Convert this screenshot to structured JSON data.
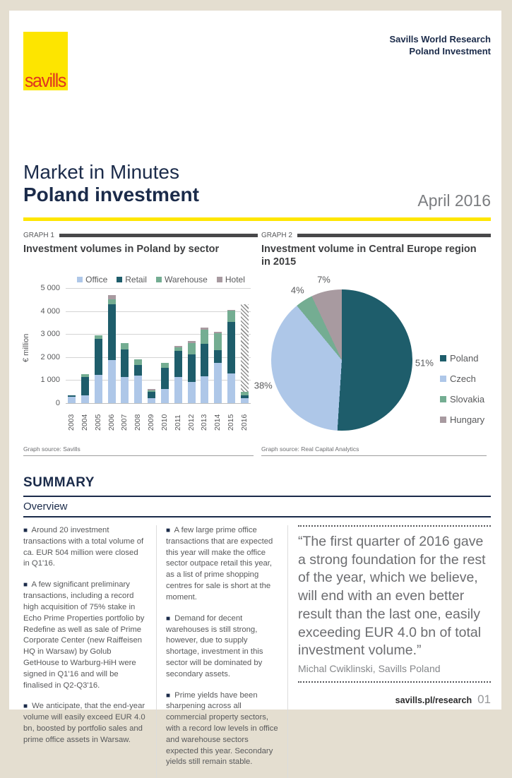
{
  "header": {
    "brand": "savills",
    "line1": "Savills World Research",
    "line2": "Poland Investment"
  },
  "title": {
    "line1": "Market in Minutes",
    "line2": "Poland investment",
    "date": "April 2016"
  },
  "graph1": {
    "tag": "GRAPH 1"
  },
  "graph2": {
    "tag": "GRAPH 2"
  },
  "chart_data": [
    {
      "type": "bar",
      "stacked": true,
      "title": "Investment volumes in Poland by sector",
      "xlabel": "",
      "ylabel": "€ million",
      "ylim": [
        0,
        5000
      ],
      "ytick_labels": [
        "5 000",
        "4 000",
        "3 000",
        "2 000",
        "1 000",
        "0"
      ],
      "categories": [
        "2003",
        "2004",
        "2005",
        "2006",
        "2007",
        "2008",
        "2009",
        "2010",
        "2011",
        "2012",
        "2013",
        "2014",
        "2015",
        "2016"
      ],
      "series": [
        {
          "name": "Office",
          "color": "#aec7e8",
          "values": [
            270,
            330,
            1220,
            1880,
            1150,
            1190,
            200,
            600,
            1150,
            930,
            1170,
            1740,
            1300,
            230
          ]
        },
        {
          "name": "Retail",
          "color": "#1e5d6b",
          "values": [
            80,
            820,
            1560,
            2420,
            1180,
            480,
            300,
            930,
            1130,
            1180,
            1410,
            570,
            2230,
            120
          ]
        },
        {
          "name": "Warehouse",
          "color": "#74ad92",
          "values": [
            0,
            100,
            170,
            220,
            270,
            240,
            60,
            210,
            140,
            490,
            620,
            720,
            490,
            150
          ]
        },
        {
          "name": "Hotel",
          "color": "#a89aa0",
          "values": [
            0,
            0,
            0,
            180,
            0,
            0,
            40,
            0,
            80,
            100,
            80,
            60,
            30,
            0
          ]
        }
      ],
      "forecast": {
        "category": "2016",
        "from": 500,
        "to": 4300,
        "style": "hatched"
      },
      "legend_position": "top",
      "grid": true,
      "source": "Graph source: Savills"
    },
    {
      "type": "pie",
      "title": "Investment volume in Central Europe region in 2015",
      "labels": [
        "Poland",
        "Czech",
        "Slovakia",
        "Hungary"
      ],
      "values": [
        51,
        38,
        4,
        7
      ],
      "unit": "%",
      "colors": [
        "#1e5d6b",
        "#aec7e8",
        "#74ad92",
        "#a89aa0"
      ],
      "legend_position": "right",
      "source": "Graph source: Real Capital Analytics"
    }
  ],
  "summary": {
    "heading": "SUMMARY",
    "subheading": "Overview",
    "bullet_char": "■",
    "col1": [
      "Around 20 investment transactions with a total volume of ca. EUR 504 million were closed in Q1'16.",
      "A few significant preliminary transactions, including a record high acquisition of 75% stake in Echo Prime Properties portfolio by Redefine as well as sale of Prime Corporate Center (new Raiffeisen HQ in Warsaw) by Golub GetHouse to Warburg-HiH were signed in Q1'16 and will be finalised in Q2-Q3'16.",
      "We anticipate, that the end-year volume will easily exceed EUR 4.0 bn, boosted by portfolio sales and prime office assets in Warsaw."
    ],
    "col2": [
      "A few large prime office transactions that are expected this year will make the office sector outpace retail this year, as a list of prime shopping centres for sale is short at the moment.",
      "Demand for decent warehouses is still strong, however, due to supply shortage, investment in this sector will be dominated by secondary assets.",
      "Prime yields have been sharpening across all commercial property sectors, with a record low levels in office and warehouse sectors expected this year. Secondary yields still remain stable."
    ],
    "quote": {
      "text": "“The first quarter of 2016 gave a strong foundation for the rest of the year, which we believe, will end with an even better result than the last one, easily exceeding EUR 4.0 bn of total investment volume.”",
      "author": "Michal Cwiklinski, Savills Poland"
    }
  },
  "footer": {
    "link": "savills.pl/research",
    "page_number": "01"
  },
  "colors": {
    "accent_yellow": "#ffe600",
    "brand_red": "#e0351f",
    "navy": "#1b2b4a",
    "beige": "#e4ded0"
  }
}
